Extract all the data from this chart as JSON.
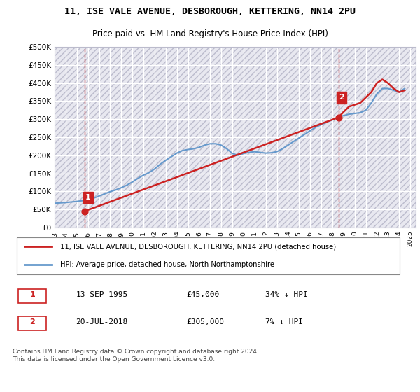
{
  "title_line1": "11, ISE VALE AVENUE, DESBOROUGH, KETTERING, NN14 2PU",
  "title_line2": "Price paid vs. HM Land Registry's House Price Index (HPI)",
  "bg_color": "#ffffff",
  "plot_bg_color": "#e8e8f0",
  "grid_color": "#ffffff",
  "hatch_color": "#ccccdd",
  "ylabel": "",
  "ylim": [
    0,
    500000
  ],
  "yticks": [
    0,
    50000,
    100000,
    150000,
    200000,
    250000,
    300000,
    350000,
    400000,
    450000,
    500000
  ],
  "ytick_labels": [
    "£0",
    "£50K",
    "£100K",
    "£150K",
    "£200K",
    "£250K",
    "£300K",
    "£350K",
    "£400K",
    "£450K",
    "£500K"
  ],
  "xlim_start": 1993.0,
  "xlim_end": 2025.5,
  "xticks": [
    1993,
    1994,
    1995,
    1996,
    1997,
    1998,
    1999,
    2000,
    2001,
    2002,
    2003,
    2004,
    2005,
    2006,
    2007,
    2008,
    2009,
    2010,
    2011,
    2012,
    2013,
    2014,
    2015,
    2016,
    2017,
    2018,
    2019,
    2020,
    2021,
    2022,
    2023,
    2024,
    2025
  ],
  "purchase_dates": [
    1995.708,
    2018.542
  ],
  "purchase_prices": [
    45000,
    305000
  ],
  "purchase_labels": [
    "1",
    "2"
  ],
  "hpi_line_color": "#6699cc",
  "price_line_color": "#cc2222",
  "vline_color": "#cc2222",
  "annotation_box_color": "#cc2222",
  "legend_line1": "11, ISE VALE AVENUE, DESBOROUGH, KETTERING, NN14 2PU (detached house)",
  "legend_line2": "HPI: Average price, detached house, North Northamptonshire",
  "footnote": "Contains HM Land Registry data © Crown copyright and database right 2024.\nThis data is licensed under the Open Government Licence v3.0.",
  "table_row1": [
    "1",
    "13-SEP-1995",
    "£45,000",
    "34% ↓ HPI"
  ],
  "table_row2": [
    "2",
    "20-JUL-2018",
    "£305,000",
    "7% ↓ HPI"
  ],
  "hpi_x": [
    1993.0,
    1993.5,
    1994.0,
    1994.5,
    1995.0,
    1995.5,
    1996.0,
    1996.5,
    1997.0,
    1997.5,
    1998.0,
    1998.5,
    1999.0,
    1999.5,
    2000.0,
    2000.5,
    2001.0,
    2001.5,
    2002.0,
    2002.5,
    2003.0,
    2003.5,
    2004.0,
    2004.5,
    2005.0,
    2005.5,
    2006.0,
    2006.5,
    2007.0,
    2007.5,
    2008.0,
    2008.5,
    2009.0,
    2009.5,
    2010.0,
    2010.5,
    2011.0,
    2011.5,
    2012.0,
    2012.5,
    2013.0,
    2013.5,
    2014.0,
    2014.5,
    2015.0,
    2015.5,
    2016.0,
    2016.5,
    2017.0,
    2017.5,
    2018.0,
    2018.5,
    2019.0,
    2019.5,
    2020.0,
    2020.5,
    2021.0,
    2021.5,
    2022.0,
    2022.5,
    2023.0,
    2023.5,
    2024.0,
    2024.5
  ],
  "hpi_y": [
    67000,
    68000,
    69000,
    70500,
    72000,
    74000,
    77000,
    81000,
    87000,
    93000,
    99000,
    104000,
    110000,
    117000,
    126000,
    136000,
    145000,
    152000,
    162000,
    175000,
    186000,
    196000,
    206000,
    213000,
    216000,
    218000,
    222000,
    228000,
    232000,
    232000,
    228000,
    218000,
    205000,
    200000,
    205000,
    208000,
    210000,
    208000,
    206000,
    207000,
    210000,
    218000,
    228000,
    238000,
    248000,
    258000,
    268000,
    278000,
    285000,
    292000,
    298000,
    305000,
    310000,
    314000,
    316000,
    318000,
    325000,
    345000,
    370000,
    385000,
    385000,
    380000,
    375000,
    385000
  ],
  "price_x": [
    1995.708,
    2018.542,
    2019.0,
    2019.5,
    2020.0,
    2020.5,
    2021.0,
    2021.5,
    2022.0,
    2022.5,
    2023.0,
    2023.5,
    2024.0,
    2024.5
  ],
  "price_y": [
    45000,
    305000,
    320000,
    335000,
    340000,
    345000,
    360000,
    375000,
    400000,
    410000,
    400000,
    385000,
    375000,
    380000
  ]
}
